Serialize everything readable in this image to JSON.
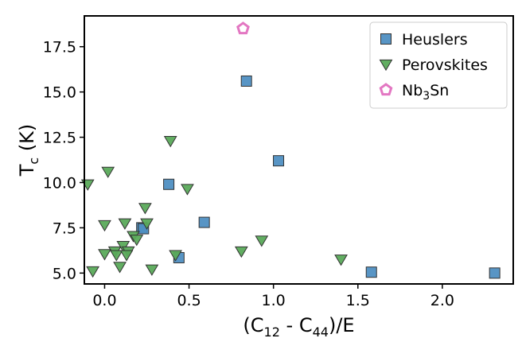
{
  "chart_data": {
    "type": "scatter",
    "xlabel": {
      "main": "(C",
      "sub1": "12",
      "mid": " - C",
      "sub2": "44",
      "end": ")/E"
    },
    "ylabel": {
      "main": "T",
      "sub": "c",
      "end": " (K)"
    },
    "xlim": [
      -0.12,
      2.42
    ],
    "ylim": [
      4.4,
      19.2
    ],
    "x_ticks": [
      0.0,
      0.5,
      1.0,
      1.5,
      2.0
    ],
    "x_tick_labels": [
      "0.0",
      "0.5",
      "1.0",
      "1.5",
      "2.0"
    ],
    "y_ticks": [
      5.0,
      7.5,
      10.0,
      12.5,
      15.0,
      17.5
    ],
    "y_tick_labels": [
      "5.0",
      "7.5",
      "10.0",
      "12.5",
      "15.0",
      "17.5"
    ],
    "grid": false,
    "legend_position": "top-right",
    "series": [
      {
        "name": "Heuslers",
        "marker": "square",
        "color": "#4f8fc2",
        "edge": "#333333",
        "points": [
          {
            "x": 0.84,
            "y": 15.6
          },
          {
            "x": 1.03,
            "y": 11.2
          },
          {
            "x": 0.38,
            "y": 9.9
          },
          {
            "x": 0.59,
            "y": 7.8
          },
          {
            "x": 0.22,
            "y": 7.5
          },
          {
            "x": 0.23,
            "y": 7.45
          },
          {
            "x": 0.44,
            "y": 5.85
          },
          {
            "x": 1.58,
            "y": 5.05
          },
          {
            "x": 2.31,
            "y": 5.0
          }
        ]
      },
      {
        "name": "Perovskites",
        "marker": "triangle-down",
        "color": "#5aaa5a",
        "edge": "#333333",
        "points": [
          {
            "x": 0.39,
            "y": 12.3
          },
          {
            "x": 0.02,
            "y": 10.6
          },
          {
            "x": -0.1,
            "y": 9.9
          },
          {
            "x": 0.49,
            "y": 9.65
          },
          {
            "x": 0.24,
            "y": 8.6
          },
          {
            "x": 0.0,
            "y": 7.65
          },
          {
            "x": 0.12,
            "y": 7.75
          },
          {
            "x": 0.25,
            "y": 7.75
          },
          {
            "x": 0.17,
            "y": 7.05
          },
          {
            "x": 0.19,
            "y": 6.85
          },
          {
            "x": 0.11,
            "y": 6.5
          },
          {
            "x": 0.14,
            "y": 6.2
          },
          {
            "x": 0.06,
            "y": 6.2
          },
          {
            "x": 0.07,
            "y": 6.0
          },
          {
            "x": 0.13,
            "y": 6.0
          },
          {
            "x": 0.0,
            "y": 6.05
          },
          {
            "x": 0.42,
            "y": 6.0
          },
          {
            "x": 0.81,
            "y": 6.2
          },
          {
            "x": 0.93,
            "y": 6.8
          },
          {
            "x": 1.4,
            "y": 5.75
          },
          {
            "x": 0.09,
            "y": 5.35
          },
          {
            "x": -0.07,
            "y": 5.1
          },
          {
            "x": 0.28,
            "y": 5.2
          }
        ]
      },
      {
        "name": "Nb3Sn",
        "label_parts": {
          "pre": "Nb",
          "sub": "3",
          "post": "Sn"
        },
        "marker": "pentagon",
        "color": "#e377c2",
        "points": [
          {
            "x": 0.82,
            "y": 18.5
          }
        ]
      }
    ]
  }
}
